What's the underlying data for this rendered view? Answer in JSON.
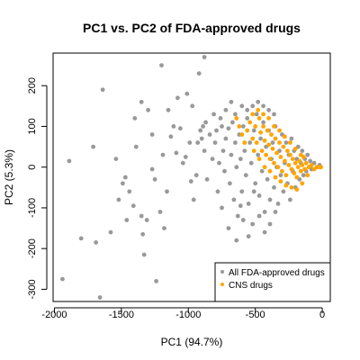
{
  "chart_data": {
    "type": "scatter",
    "title": "PC1 vs. PC2 of FDA-approved drugs",
    "xlabel": "PC1 (94.7%)",
    "ylabel": "PC2 (5.3%)",
    "xlim": [
      -2010,
      60
    ],
    "ylim": [
      -330,
      280
    ],
    "xticks": [
      -2000,
      -1500,
      -1000,
      -500,
      0
    ],
    "yticks": [
      -300,
      -200,
      -100,
      0,
      100,
      200
    ],
    "grid": false,
    "legend_position": "bottom-right",
    "series": [
      {
        "name": "All FDA-approved drugs",
        "color": "#999999",
        "points": [
          [
            -1940,
            -275
          ],
          [
            -1890,
            15
          ],
          [
            -1800,
            -175
          ],
          [
            -1710,
            50
          ],
          [
            -1690,
            -185
          ],
          [
            -1660,
            -320
          ],
          [
            -1640,
            190
          ],
          [
            -1580,
            -160
          ],
          [
            -1490,
            -40
          ],
          [
            -1470,
            -25
          ],
          [
            -1460,
            -130
          ],
          [
            -1440,
            -60
          ],
          [
            -1410,
            -95
          ],
          [
            -1400,
            120
          ],
          [
            -1390,
            50
          ],
          [
            -1350,
            -120
          ],
          [
            -1340,
            -165
          ],
          [
            -1330,
            -215
          ],
          [
            -1310,
            -130
          ],
          [
            -1270,
            80
          ],
          [
            -1270,
            -5
          ],
          [
            -1250,
            -30
          ],
          [
            -1240,
            -280
          ],
          [
            -1210,
            -110
          ],
          [
            -1190,
            30
          ],
          [
            -1180,
            -150
          ],
          [
            -1160,
            -60
          ],
          [
            -1150,
            140
          ],
          [
            -1130,
            75
          ],
          [
            -1110,
            100
          ],
          [
            -1090,
            35
          ],
          [
            -1060,
            95
          ],
          [
            -1040,
            10
          ],
          [
            -1020,
            25
          ],
          [
            -990,
            60
          ],
          [
            -980,
            -35
          ],
          [
            -960,
            -80
          ],
          [
            -940,
            -20
          ],
          [
            -930,
            60
          ],
          [
            -910,
            90
          ],
          [
            -900,
            70
          ],
          [
            -890,
            100
          ],
          [
            -880,
            40
          ],
          [
            -870,
            110
          ],
          [
            -860,
            -30
          ],
          [
            -840,
            80
          ],
          [
            -820,
            20
          ],
          [
            -800,
            60
          ],
          [
            -790,
            90
          ],
          [
            -780,
            -60
          ],
          [
            -770,
            10
          ],
          [
            -760,
            120
          ],
          [
            -750,
            -100
          ],
          [
            -740,
            40
          ],
          [
            -730,
            -10
          ],
          [
            -720,
            70
          ],
          [
            -700,
            95
          ],
          [
            -690,
            -40
          ],
          [
            -680,
            30
          ],
          [
            -670,
            110
          ],
          [
            -660,
            -80
          ],
          [
            -650,
            60
          ],
          [
            -640,
            0
          ],
          [
            -630,
            -120
          ],
          [
            -620,
            80
          ],
          [
            -610,
            20
          ],
          [
            -600,
            -60
          ],
          [
            -590,
            100
          ],
          [
            -580,
            40
          ],
          [
            -570,
            -20
          ],
          [
            -560,
            120
          ],
          [
            -550,
            -90
          ],
          [
            -540,
            60
          ],
          [
            -530,
            10
          ],
          [
            -520,
            -140
          ],
          [
            -510,
            90
          ],
          [
            -500,
            -40
          ],
          [
            -490,
            130
          ],
          [
            -480,
            30
          ],
          [
            -470,
            -70
          ],
          [
            -460,
            70
          ],
          [
            -450,
            -10
          ],
          [
            -440,
            110
          ],
          [
            -430,
            -110
          ],
          [
            -420,
            50
          ],
          [
            -410,
            -30
          ],
          [
            -400,
            90
          ],
          [
            -390,
            -80
          ],
          [
            -380,
            20
          ],
          [
            -370,
            60
          ],
          [
            -360,
            -50
          ],
          [
            -350,
            100
          ],
          [
            -340,
            0
          ],
          [
            -330,
            -90
          ],
          [
            -320,
            40
          ],
          [
            -310,
            -20
          ],
          [
            -300,
            80
          ],
          [
            -290,
            -60
          ],
          [
            -280,
            10
          ],
          [
            -270,
            60
          ],
          [
            -260,
            -40
          ],
          [
            -250,
            30
          ],
          [
            -240,
            -80
          ],
          [
            -230,
            70
          ],
          [
            -220,
            -10
          ],
          [
            -210,
            40
          ],
          [
            -200,
            -50
          ],
          [
            -190,
            20
          ],
          [
            -180,
            50
          ],
          [
            -170,
            -30
          ],
          [
            -160,
            10
          ],
          [
            -150,
            40
          ],
          [
            -140,
            -20
          ],
          [
            -130,
            20
          ],
          [
            -120,
            -10
          ],
          [
            -110,
            30
          ],
          [
            -100,
            0
          ],
          [
            -90,
            15
          ],
          [
            -80,
            -5
          ],
          [
            -60,
            10
          ],
          [
            -40,
            0
          ],
          [
            -20,
            5
          ],
          [
            -700,
            -150
          ],
          [
            -640,
            -180
          ],
          [
            -590,
            -130
          ],
          [
            -550,
            -170
          ],
          [
            -510,
            -60
          ],
          [
            -470,
            -120
          ],
          [
            -430,
            -160
          ],
          [
            -390,
            -140
          ],
          [
            -350,
            -110
          ],
          [
            -610,
            -95
          ],
          [
            -560,
            140
          ],
          [
            -520,
            150
          ],
          [
            -480,
            160
          ],
          [
            -440,
            150
          ],
          [
            -400,
            140
          ],
          [
            -360,
            130
          ],
          [
            -720,
            140
          ],
          [
            -680,
            160
          ],
          [
            -650,
            130
          ],
          [
            -600,
            150
          ],
          [
            -750,
            100
          ],
          [
            -810,
            130
          ],
          [
            -1010,
            180
          ],
          [
            -1200,
            250
          ],
          [
            -880,
            270
          ],
          [
            -920,
            230
          ],
          [
            -970,
            150
          ],
          [
            -1080,
            170
          ],
          [
            -1350,
            160
          ],
          [
            -1300,
            140
          ],
          [
            -1540,
            20
          ],
          [
            -1520,
            -80
          ]
        ]
      },
      {
        "name": "CNS drugs",
        "color": "#ffa500",
        "points": [
          [
            -560,
            90
          ],
          [
            -540,
            110
          ],
          [
            -520,
            70
          ],
          [
            -500,
            100
          ],
          [
            -490,
            60
          ],
          [
            -470,
            120
          ],
          [
            -460,
            85
          ],
          [
            -450,
            40
          ],
          [
            -440,
            100
          ],
          [
            -430,
            65
          ],
          [
            -420,
            30
          ],
          [
            -410,
            90
          ],
          [
            -400,
            55
          ],
          [
            -390,
            20
          ],
          [
            -380,
            80
          ],
          [
            -370,
            45
          ],
          [
            -360,
            10
          ],
          [
            -350,
            70
          ],
          [
            -340,
            35
          ],
          [
            -330,
            0
          ],
          [
            -320,
            60
          ],
          [
            -310,
            25
          ],
          [
            -300,
            -10
          ],
          [
            -290,
            50
          ],
          [
            -280,
            15
          ],
          [
            -270,
            -20
          ],
          [
            -260,
            40
          ],
          [
            -250,
            5
          ],
          [
            -240,
            30
          ],
          [
            -230,
            -5
          ],
          [
            -220,
            20
          ],
          [
            -210,
            -15
          ],
          [
            -200,
            10
          ],
          [
            -190,
            -25
          ],
          [
            -180,
            0
          ],
          [
            -170,
            15
          ],
          [
            -160,
            -10
          ],
          [
            -150,
            5
          ],
          [
            -140,
            25
          ],
          [
            -130,
            -5
          ],
          [
            -120,
            10
          ],
          [
            -100,
            0
          ],
          [
            -80,
            5
          ],
          [
            -60,
            -5
          ],
          [
            -40,
            0
          ],
          [
            -20,
            0
          ],
          [
            -10,
            0
          ],
          [
            -620,
            100
          ],
          [
            -600,
            80
          ],
          [
            -580,
            60
          ],
          [
            -640,
            120
          ],
          [
            -520,
            130
          ],
          [
            -480,
            140
          ],
          [
            -440,
            130
          ],
          [
            -400,
            120
          ],
          [
            -360,
            100
          ],
          [
            -320,
            90
          ],
          [
            -280,
            75
          ],
          [
            -240,
            60
          ],
          [
            -200,
            45
          ],
          [
            -160,
            30
          ],
          [
            -510,
            40
          ],
          [
            -470,
            20
          ],
          [
            -430,
            0
          ],
          [
            -390,
            -10
          ],
          [
            -350,
            -25
          ],
          [
            -310,
            -35
          ],
          [
            -270,
            -45
          ],
          [
            -230,
            -50
          ],
          [
            -190,
            -55
          ],
          [
            -150,
            -40
          ],
          [
            -110,
            -20
          ]
        ]
      }
    ]
  }
}
